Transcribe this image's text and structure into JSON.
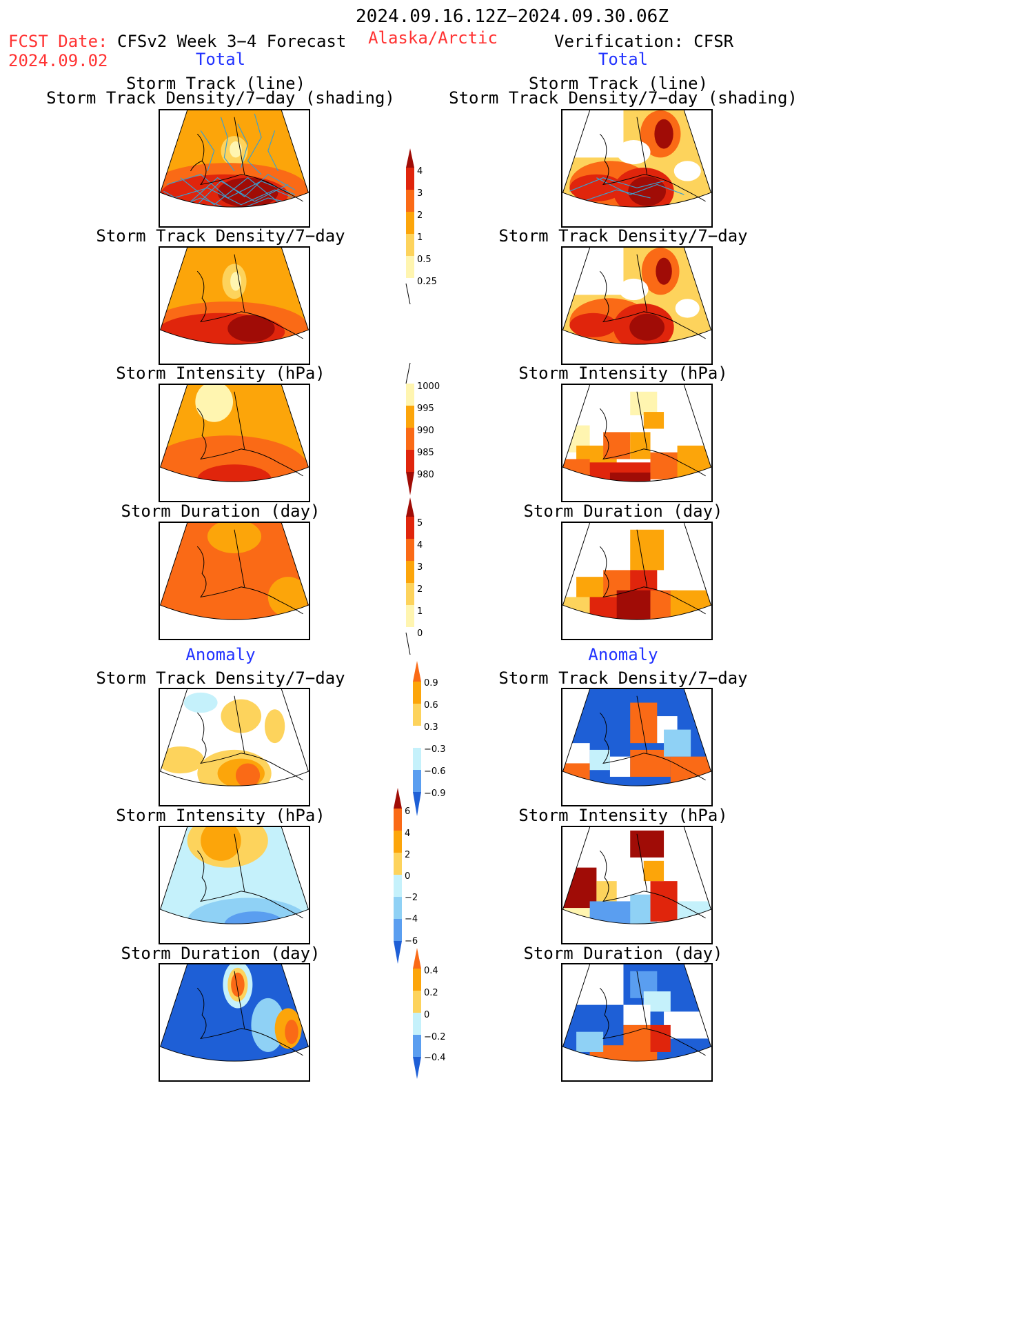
{
  "header": {
    "date_range": "2024.09.16.12Z−2024.09.30.06Z",
    "fcst_label": "FCST Date:",
    "fcst_date": "2024.09.02",
    "forecast_title": "CFSv2 Week 3−4 Forecast",
    "region": "Alaska/Arctic",
    "verification": "Verification: CFSR"
  },
  "sections": {
    "total_left": "Total",
    "total_right": "Total",
    "anomaly_left": "Anomaly",
    "anomaly_right": "Anomaly"
  },
  "panels": {
    "track_line": "Storm Track (line)",
    "track_shading": "Storm Track Density/7−day (shading)",
    "density": "Storm Track Density/7−day",
    "intensity": "Storm Intensity (hPa)",
    "duration": "Storm Duration (day)"
  },
  "colorbars": {
    "density_total": [
      "4",
      "3",
      "2",
      "1",
      "0.5",
      "0.25"
    ],
    "intensity_total": [
      "1000",
      "995",
      "990",
      "985",
      "980"
    ],
    "duration_total": [
      "5",
      "4",
      "3",
      "2",
      "1",
      "0"
    ],
    "density_anom": [
      "0.9",
      "0.6",
      "0.3",
      "−0.3",
      "−0.6",
      "−0.9"
    ],
    "intensity_anom": [
      "6",
      "4",
      "2",
      "0",
      "−2",
      "−4",
      "−6"
    ],
    "duration_anom": [
      "0.4",
      "0.2",
      "0",
      "−0.2",
      "−0.4"
    ]
  },
  "colors": {
    "forecast_label": "#ff3333",
    "section_label": "#2233ff",
    "warm_1": "#fff5b0",
    "warm_2": "#fdd35c",
    "warm_3": "#fca50a",
    "warm_4": "#fa6a16",
    "warm_5": "#e0250c",
    "warm_6": "#a00c06",
    "cool_1": "#c5f1fb",
    "cool_2": "#8fd1f5",
    "cool_3": "#5a9ef0",
    "cool_4": "#1e5fd6"
  }
}
